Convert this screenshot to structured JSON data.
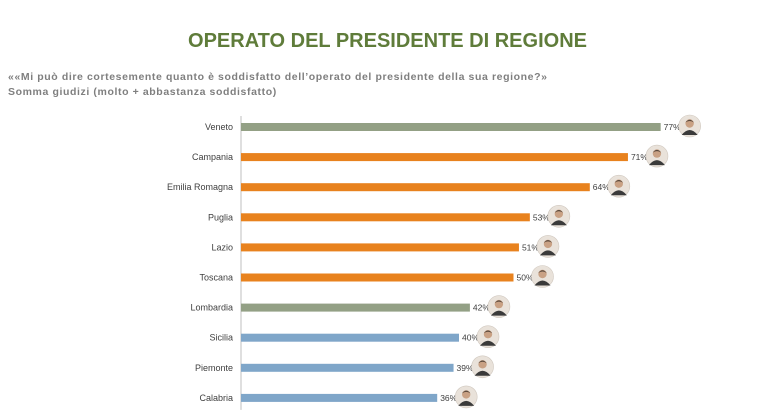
{
  "header": {
    "title": "OPERATO DEL PRESIDENTE DI REGIONE",
    "question": "««Mi può dire cortesemente quanto è soddisfatto dell’operato del presidente della sua regione?»",
    "subtitle": "Somma giudizi (molto + abbastanza soddisfatto)"
  },
  "colors": {
    "title": "#5f7c3a",
    "green": "#93a085",
    "orange": "#e8821e",
    "blue": "#7fa6c9",
    "axis": "#bfbfbf"
  },
  "chart_data": {
    "type": "bar",
    "orientation": "horizontal",
    "title": "OPERATO DEL PRESIDENTE DI REGIONE",
    "xlim": [
      0,
      100
    ],
    "categories": [
      "Veneto",
      "Campania",
      "Emilia Romagna",
      "Puglia",
      "Lazio",
      "Toscana",
      "Lombardia",
      "Sicilia",
      "Piemonte",
      "Calabria"
    ],
    "values": [
      77,
      71,
      64,
      53,
      51,
      50,
      42,
      40,
      39,
      36
    ],
    "value_labels": [
      "77%",
      "71%",
      "64%",
      "53%",
      "51%",
      "50%",
      "42%",
      "40%",
      "39%",
      "36%"
    ],
    "bar_colors": [
      "green",
      "orange",
      "orange",
      "orange",
      "orange",
      "orange",
      "green",
      "blue",
      "blue",
      "blue"
    ],
    "avatars": [
      "president-photo-icon",
      "president-photo-icon",
      "president-photo-icon",
      "president-photo-icon",
      "president-photo-icon",
      "president-photo-icon",
      "president-photo-icon",
      "president-photo-icon",
      "president-photo-icon",
      "president-photo-icon"
    ]
  }
}
